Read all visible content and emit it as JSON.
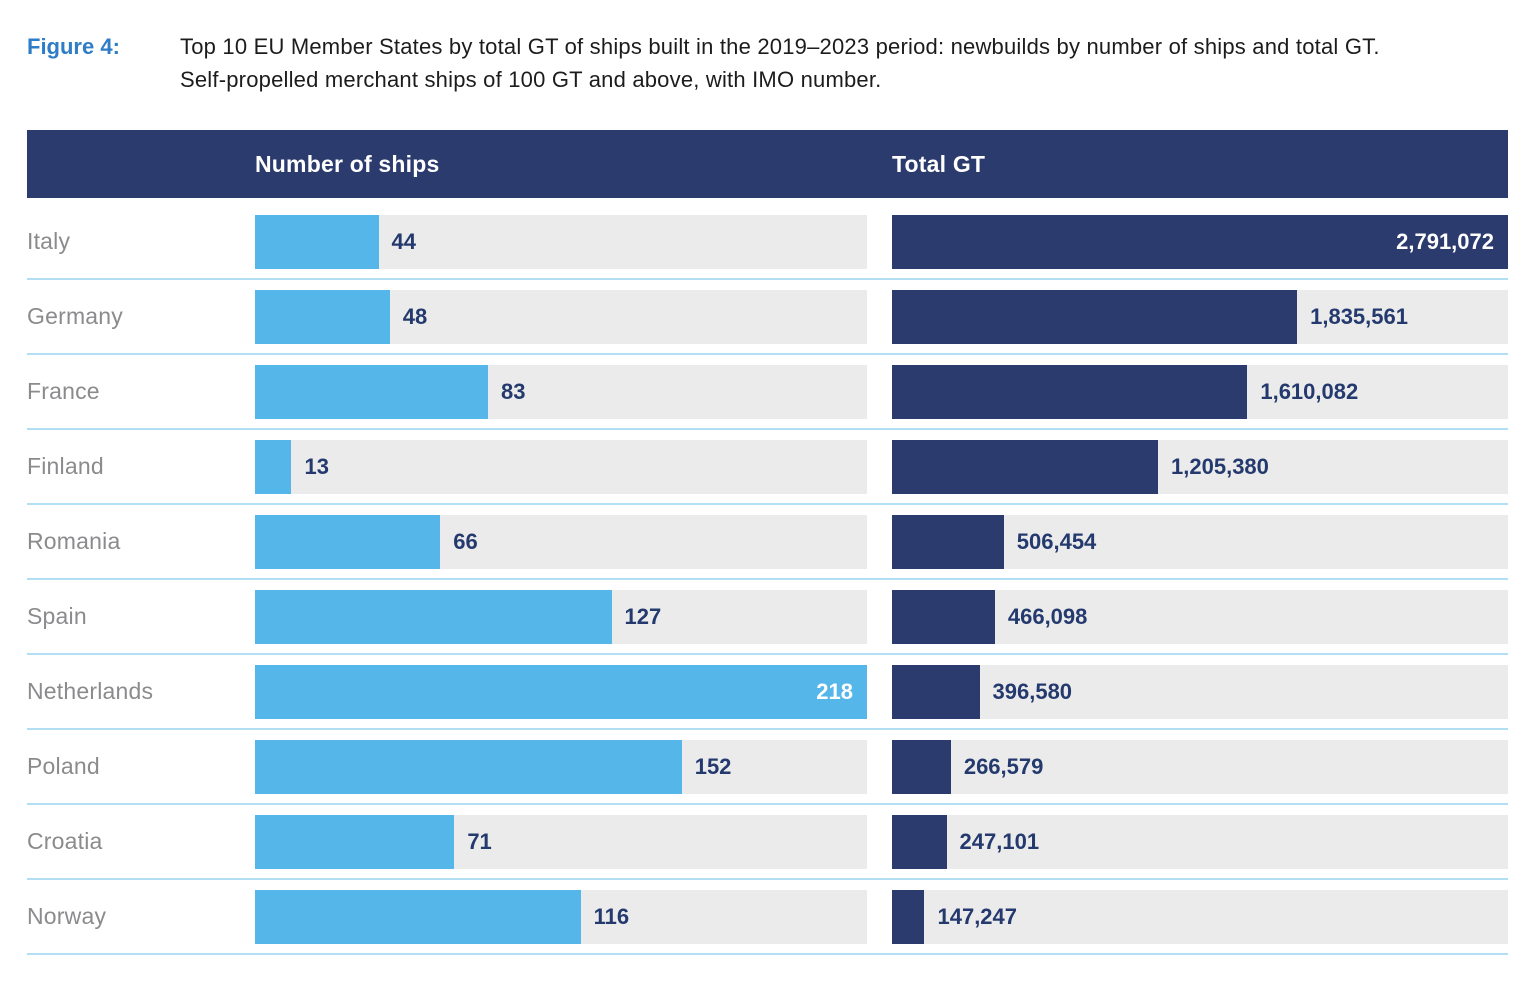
{
  "figure": {
    "label": "Figure 4:",
    "title": "Top 10 EU Member States by total GT of ships built in the 2019–2023 period: newbuilds by number of ships and total GT. Self-propelled merchant ships of 100 GT and above, with IMO number."
  },
  "chart_data": {
    "type": "bar",
    "orientation": "horizontal",
    "title": "Top 10 EU Member States by total GT of ships built in the 2019–2023 period",
    "grid": false,
    "legend_position": "column-headers",
    "categories": [
      "Italy",
      "Germany",
      "France",
      "Finland",
      "Romania",
      "Spain",
      "Netherlands",
      "Poland",
      "Croatia",
      "Norway"
    ],
    "series": [
      {
        "name": "Number of ships",
        "color": "#55B7E9",
        "values": [
          44,
          48,
          83,
          13,
          66,
          127,
          218,
          152,
          71,
          116
        ],
        "labels": [
          "44",
          "48",
          "83",
          "13",
          "66",
          "127",
          "218",
          "152",
          "71",
          "116"
        ],
        "xlim": [
          0,
          218
        ]
      },
      {
        "name": "Total GT",
        "color": "#2C3B6E",
        "values": [
          2791072,
          1835561,
          1610082,
          1205380,
          506454,
          466098,
          396580,
          266579,
          247101,
          147247
        ],
        "labels": [
          "2,791,072",
          "1,835,561",
          "1,610,082",
          "1,205,380",
          "506,454",
          "466,098",
          "396,580",
          "266,579",
          "247,101",
          "147,247"
        ],
        "xlim": [
          0,
          2791072
        ]
      }
    ]
  },
  "colors": {
    "header_bar": "#2C3B6E",
    "ships_bar": "#55B7E9",
    "gt_bar": "#2C3B6E",
    "bar_track": "#EBEBEB",
    "row_separator": "#B3DFF6",
    "country_label": "#8B8B8E",
    "value_text": "#243A6E",
    "value_text_inside": "#FFFFFF",
    "figure_label": "#2E7DC6",
    "title_text": "#1C1C1C"
  }
}
